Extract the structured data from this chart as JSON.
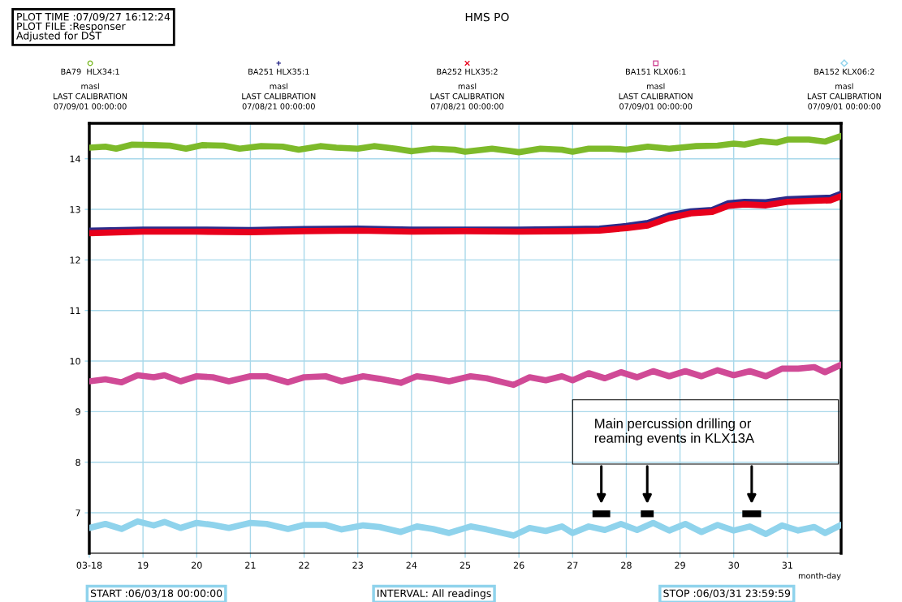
{
  "chart_data": {
    "type": "line",
    "title": "HMS PO",
    "xlabel": "month-day",
    "annotations": [
      "PLOT TIME :07/09/27 16:12:24\nPLOT FILE :Responser\nAdjusted for DST",
      "masl\nLAST CALIBRATION\n07/09/01 00:00:00",
      "masl\nLAST CALIBRATION\n07/08/21 00:00:00",
      "masl\nLAST CALIBRATION\n07/08/21 00:00:00",
      "masl\nLAST CALIBRATION\n07/09/01 00:00:00",
      "masl\nLAST CALIBRATION\n07/09/01 00:00:00",
      "Main percussion drilling or\nreaming events in KLX13A",
      "START :06/03/18 00:00:00",
      "INTERVAL: All readings",
      "STOP :06/03/31 23:59:59"
    ],
    "xlim": [
      18,
      32
    ],
    "ylim": [
      6.2,
      14.7
    ],
    "xticks": [
      {
        "value": 18,
        "label": "03-18"
      },
      19,
      20,
      21,
      22,
      23,
      24,
      25,
      26,
      27,
      28,
      29,
      30,
      31
    ],
    "yticks": [
      7,
      8,
      9,
      10,
      11,
      12,
      13,
      14
    ],
    "grid": true,
    "legend": "top",
    "series": [
      {
        "color": "#000000",
        "x": [
          27.37,
          27.7
        ],
        "values": [
          6.98,
          6.98
        ]
      },
      {
        "color": "#000000",
        "x": [
          28.27,
          28.51
        ],
        "values": [
          6.98,
          6.98
        ]
      },
      {
        "color": "#000000",
        "x": [
          30.16,
          30.51
        ],
        "values": [
          6.98,
          6.98
        ]
      },
      {
        "name": "BA79  HLX34:1",
        "color": "#7dba2a",
        "x": [
          18.0,
          18.3,
          18.5,
          18.8,
          19.2,
          19.5,
          19.8,
          20.1,
          20.5,
          20.8,
          21.2,
          21.6,
          21.9,
          22.3,
          22.6,
          23.0,
          23.3,
          23.7,
          24.0,
          24.4,
          24.8,
          25.0,
          25.5,
          25.8,
          26.0,
          26.4,
          26.8,
          27.0,
          27.3,
          27.7,
          28.0,
          28.4,
          28.8,
          29.0,
          29.3,
          29.7,
          30.0,
          30.2,
          30.5,
          30.8,
          31.0,
          31.4,
          31.7,
          32.0
        ],
        "values": [
          14.22,
          14.24,
          14.2,
          14.28,
          14.27,
          14.26,
          14.2,
          14.27,
          14.26,
          14.2,
          14.25,
          14.24,
          14.18,
          14.25,
          14.22,
          14.2,
          14.25,
          14.2,
          14.15,
          14.2,
          14.18,
          14.14,
          14.2,
          14.16,
          14.13,
          14.2,
          14.18,
          14.14,
          14.2,
          14.2,
          14.18,
          14.24,
          14.2,
          14.22,
          14.25,
          14.26,
          14.3,
          14.28,
          14.35,
          14.32,
          14.38,
          14.38,
          14.34,
          14.45
        ]
      },
      {
        "name": "BA251 HLX35:1",
        "color": "#2b2b8a",
        "x": [
          18,
          19,
          20,
          21,
          22,
          23,
          24,
          25,
          26,
          27,
          27.5,
          28,
          28.4,
          28.8,
          29.2,
          29.6,
          29.9,
          30.2,
          30.6,
          31.0,
          31.5,
          31.8,
          32.0
        ],
        "values": [
          12.58,
          12.6,
          12.6,
          12.59,
          12.61,
          12.62,
          12.6,
          12.6,
          12.6,
          12.61,
          12.62,
          12.67,
          12.73,
          12.88,
          12.96,
          12.99,
          13.12,
          13.15,
          13.14,
          13.2,
          13.22,
          13.23,
          13.31
        ]
      },
      {
        "name": "BA252 HLX35:2",
        "color": "#e8001c",
        "x": [
          18,
          19,
          20,
          21,
          22,
          23,
          24,
          25,
          26,
          27,
          27.5,
          28,
          28.4,
          28.8,
          29.2,
          29.6,
          29.9,
          30.2,
          30.6,
          31.0,
          31.5,
          31.8,
          32.0
        ],
        "values": [
          12.53,
          12.56,
          12.56,
          12.55,
          12.57,
          12.58,
          12.56,
          12.57,
          12.56,
          12.57,
          12.58,
          12.63,
          12.68,
          12.83,
          12.92,
          12.95,
          13.07,
          13.1,
          13.08,
          13.15,
          13.17,
          13.18,
          13.26
        ]
      },
      {
        "name": "BA151 KLX06:1",
        "color": "#d04a96",
        "x": [
          18.0,
          18.3,
          18.6,
          18.9,
          19.2,
          19.4,
          19.7,
          20.0,
          20.3,
          20.6,
          21.0,
          21.3,
          21.7,
          22.0,
          22.4,
          22.7,
          23.1,
          23.4,
          23.8,
          24.1,
          24.4,
          24.7,
          25.1,
          25.4,
          25.9,
          26.2,
          26.5,
          26.8,
          27.0,
          27.3,
          27.6,
          27.9,
          28.2,
          28.5,
          28.8,
          29.1,
          29.4,
          29.7,
          30.0,
          30.3,
          30.6,
          30.9,
          31.2,
          31.5,
          31.7,
          32.0
        ],
        "values": [
          9.6,
          9.64,
          9.58,
          9.72,
          9.68,
          9.72,
          9.6,
          9.7,
          9.68,
          9.6,
          9.7,
          9.7,
          9.58,
          9.68,
          9.7,
          9.6,
          9.7,
          9.65,
          9.57,
          9.7,
          9.66,
          9.6,
          9.7,
          9.66,
          9.53,
          9.68,
          9.62,
          9.7,
          9.62,
          9.76,
          9.66,
          9.78,
          9.68,
          9.8,
          9.7,
          9.8,
          9.7,
          9.82,
          9.72,
          9.8,
          9.7,
          9.85,
          9.85,
          9.88,
          9.78,
          9.93
        ]
      },
      {
        "name": "BA152 KLX06:2",
        "color": "#8fd3ec",
        "x": [
          18.0,
          18.3,
          18.6,
          18.9,
          19.2,
          19.4,
          19.7,
          20.0,
          20.3,
          20.6,
          21.0,
          21.3,
          21.7,
          22.0,
          22.4,
          22.7,
          23.1,
          23.4,
          23.8,
          24.1,
          24.4,
          24.7,
          25.1,
          25.4,
          25.9,
          26.2,
          26.5,
          26.8,
          27.0,
          27.3,
          27.6,
          27.9,
          28.2,
          28.5,
          28.8,
          29.1,
          29.4,
          29.7,
          30.0,
          30.3,
          30.6,
          30.9,
          31.2,
          31.5,
          31.7,
          32.0
        ],
        "values": [
          6.7,
          6.78,
          6.68,
          6.83,
          6.75,
          6.82,
          6.7,
          6.8,
          6.76,
          6.7,
          6.8,
          6.78,
          6.68,
          6.76,
          6.76,
          6.67,
          6.75,
          6.72,
          6.62,
          6.73,
          6.68,
          6.6,
          6.73,
          6.67,
          6.55,
          6.7,
          6.64,
          6.73,
          6.6,
          6.73,
          6.66,
          6.78,
          6.66,
          6.8,
          6.65,
          6.78,
          6.62,
          6.76,
          6.65,
          6.73,
          6.58,
          6.75,
          6.65,
          6.72,
          6.6,
          6.76
        ]
      }
    ]
  }
}
